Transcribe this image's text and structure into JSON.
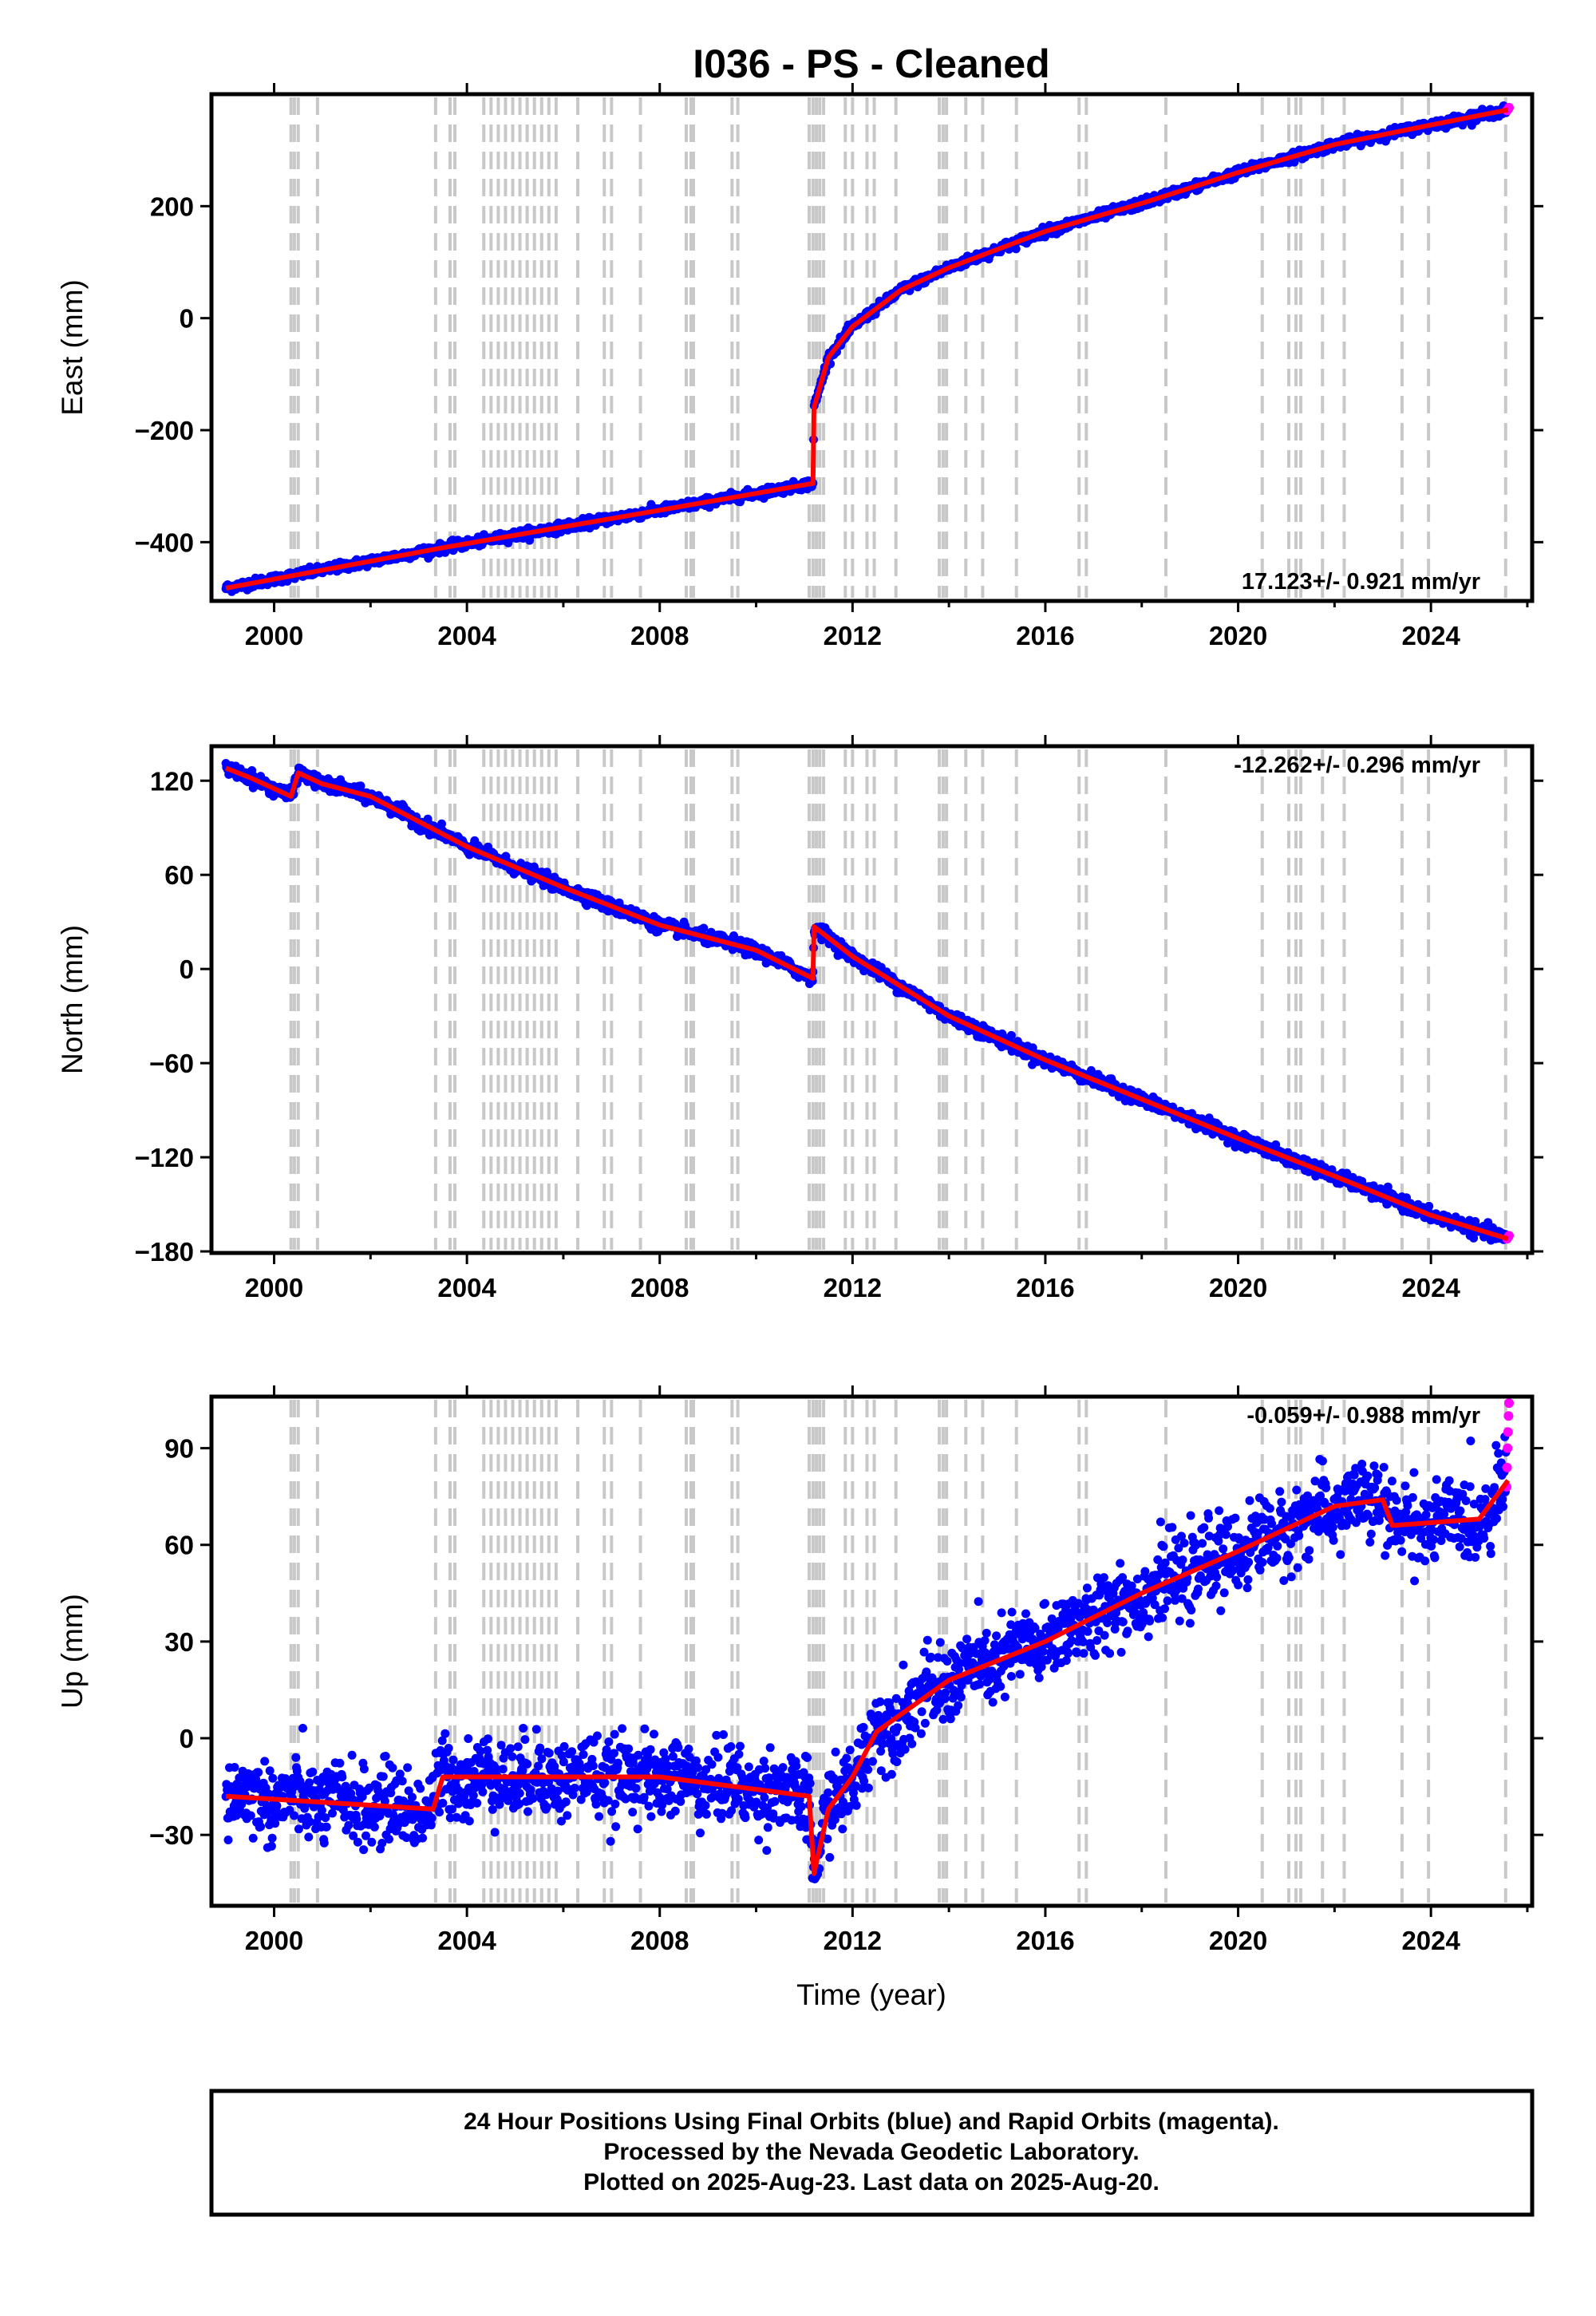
{
  "title": "I036  - PS - Cleaned",
  "x_axis_label": "Time (year)",
  "footer": [
    "24 Hour Positions Using Final Orbits (blue) and Rapid Orbits (magenta).",
    "Processed by the Nevada Geodetic Laboratory.",
    "Plotted on 2025-Aug-23. Last data on 2025-Aug-20."
  ],
  "colors": {
    "final": "#0000ff",
    "rapid": "#ff00ff",
    "model": "#ff0000",
    "events": "#c8c8c8"
  },
  "event_years": [
    2000.35,
    2000.42,
    2000.5,
    2000.9,
    2003.35,
    2003.65,
    2003.75,
    2004.35,
    2004.5,
    2004.65,
    2004.8,
    2004.95,
    2005.1,
    2005.25,
    2005.4,
    2005.55,
    2005.7,
    2005.85,
    2006.3,
    2006.85,
    2007.0,
    2007.6,
    2008.55,
    2008.65,
    2008.7,
    2009.5,
    2009.62,
    2011.1,
    2011.18,
    2011.25,
    2011.32,
    2011.4,
    2011.85,
    2012.0,
    2012.3,
    2012.45,
    2012.9,
    2013.8,
    2013.88,
    2013.95,
    2014.35,
    2014.7,
    2015.4,
    2016.7,
    2016.85,
    2018.5,
    2020.5,
    2021.05,
    2021.2,
    2021.3,
    2021.75,
    2022.2,
    2023.4,
    2023.95,
    2025.55
  ],
  "chart_data": [
    {
      "type": "scatter",
      "component": "East",
      "ylabel": "East (mm)",
      "xlim": [
        1998.7,
        2026.1
      ],
      "ylim": [
        -505,
        400
      ],
      "x_ticks": [
        2000,
        2004,
        2008,
        2012,
        2016,
        2020,
        2024
      ],
      "y_ticks": [
        -400,
        -200,
        0,
        200
      ],
      "rate_label": "17.123+/- 0.921 mm/yr",
      "noise_mm": 4,
      "seasonal_mm": 0,
      "trend": {
        "x": [
          1999.0,
          2003.5,
          2008.0,
          2011.18,
          2011.2,
          2011.5,
          2012.0,
          2013.0,
          2014.0,
          2016.0,
          2018.0,
          2020.0,
          2022.0,
          2024.0,
          2025.6
        ],
        "y": [
          -482,
          -410,
          -343,
          -295,
          -160,
          -70,
          -15,
          50,
          90,
          155,
          205,
          260,
          310,
          345,
          372
        ]
      },
      "rapid": {
        "x": [
          2025.58,
          2025.6,
          2025.62
        ],
        "y": [
          371,
          373,
          376
        ]
      }
    },
    {
      "type": "scatter",
      "component": "North",
      "ylabel": "North (mm)",
      "xlim": [
        1998.7,
        2026.1
      ],
      "ylim": [
        -181,
        142
      ],
      "x_ticks": [
        2000,
        2004,
        2008,
        2012,
        2016,
        2020,
        2024
      ],
      "y_ticks": [
        -180,
        -120,
        -60,
        0,
        60,
        120
      ],
      "rate_label": "-12.262+/- 0.296 mm/yr",
      "noise_mm": 2,
      "seasonal_mm": 1,
      "trend": {
        "x": [
          1999.0,
          1999.5,
          2000.35,
          2000.5,
          2001.0,
          2002.0,
          2004.0,
          2006.0,
          2008.0,
          2010.0,
          2011.18,
          2011.2,
          2012.0,
          2014.0,
          2016.0,
          2018.0,
          2020.0,
          2022.0,
          2024.0,
          2025.6
        ],
        "y": [
          128,
          122,
          110,
          125,
          118,
          110,
          78,
          52,
          28,
          12,
          -6,
          27,
          8,
          -30,
          -58,
          -83,
          -108,
          -132,
          -157,
          -172
        ]
      },
      "rapid": {
        "x": [
          2025.58,
          2025.6,
          2025.62
        ],
        "y": [
          -172,
          -171,
          -170
        ]
      }
    },
    {
      "type": "scatter",
      "component": "Up",
      "ylabel": "Up (mm)",
      "xlim": [
        1998.7,
        2026.1
      ],
      "ylim": [
        -52,
        106
      ],
      "x_ticks": [
        2000,
        2004,
        2008,
        2012,
        2016,
        2020,
        2024
      ],
      "y_ticks": [
        -30,
        0,
        30,
        60,
        90
      ],
      "rate_label": "-0.059+/- 0.988 mm/yr",
      "noise_mm": 6,
      "seasonal_mm": 6,
      "trend": {
        "x": [
          1999.0,
          2003.3,
          2003.5,
          2008.0,
          2011.1,
          2011.2,
          2011.5,
          2012.0,
          2012.5,
          2014.0,
          2016.0,
          2018.0,
          2020.0,
          2022.0,
          2023.0,
          2023.2,
          2025.0,
          2025.6
        ],
        "y": [
          -18,
          -22,
          -12,
          -12,
          -18,
          -42,
          -22,
          -12,
          2,
          18,
          30,
          45,
          58,
          72,
          74,
          66,
          68,
          80
        ]
      },
      "rapid": {
        "x": [
          2025.57,
          2025.58,
          2025.59,
          2025.6,
          2025.61,
          2025.62
        ],
        "y": [
          78,
          84,
          90,
          95,
          100,
          104
        ]
      }
    }
  ]
}
